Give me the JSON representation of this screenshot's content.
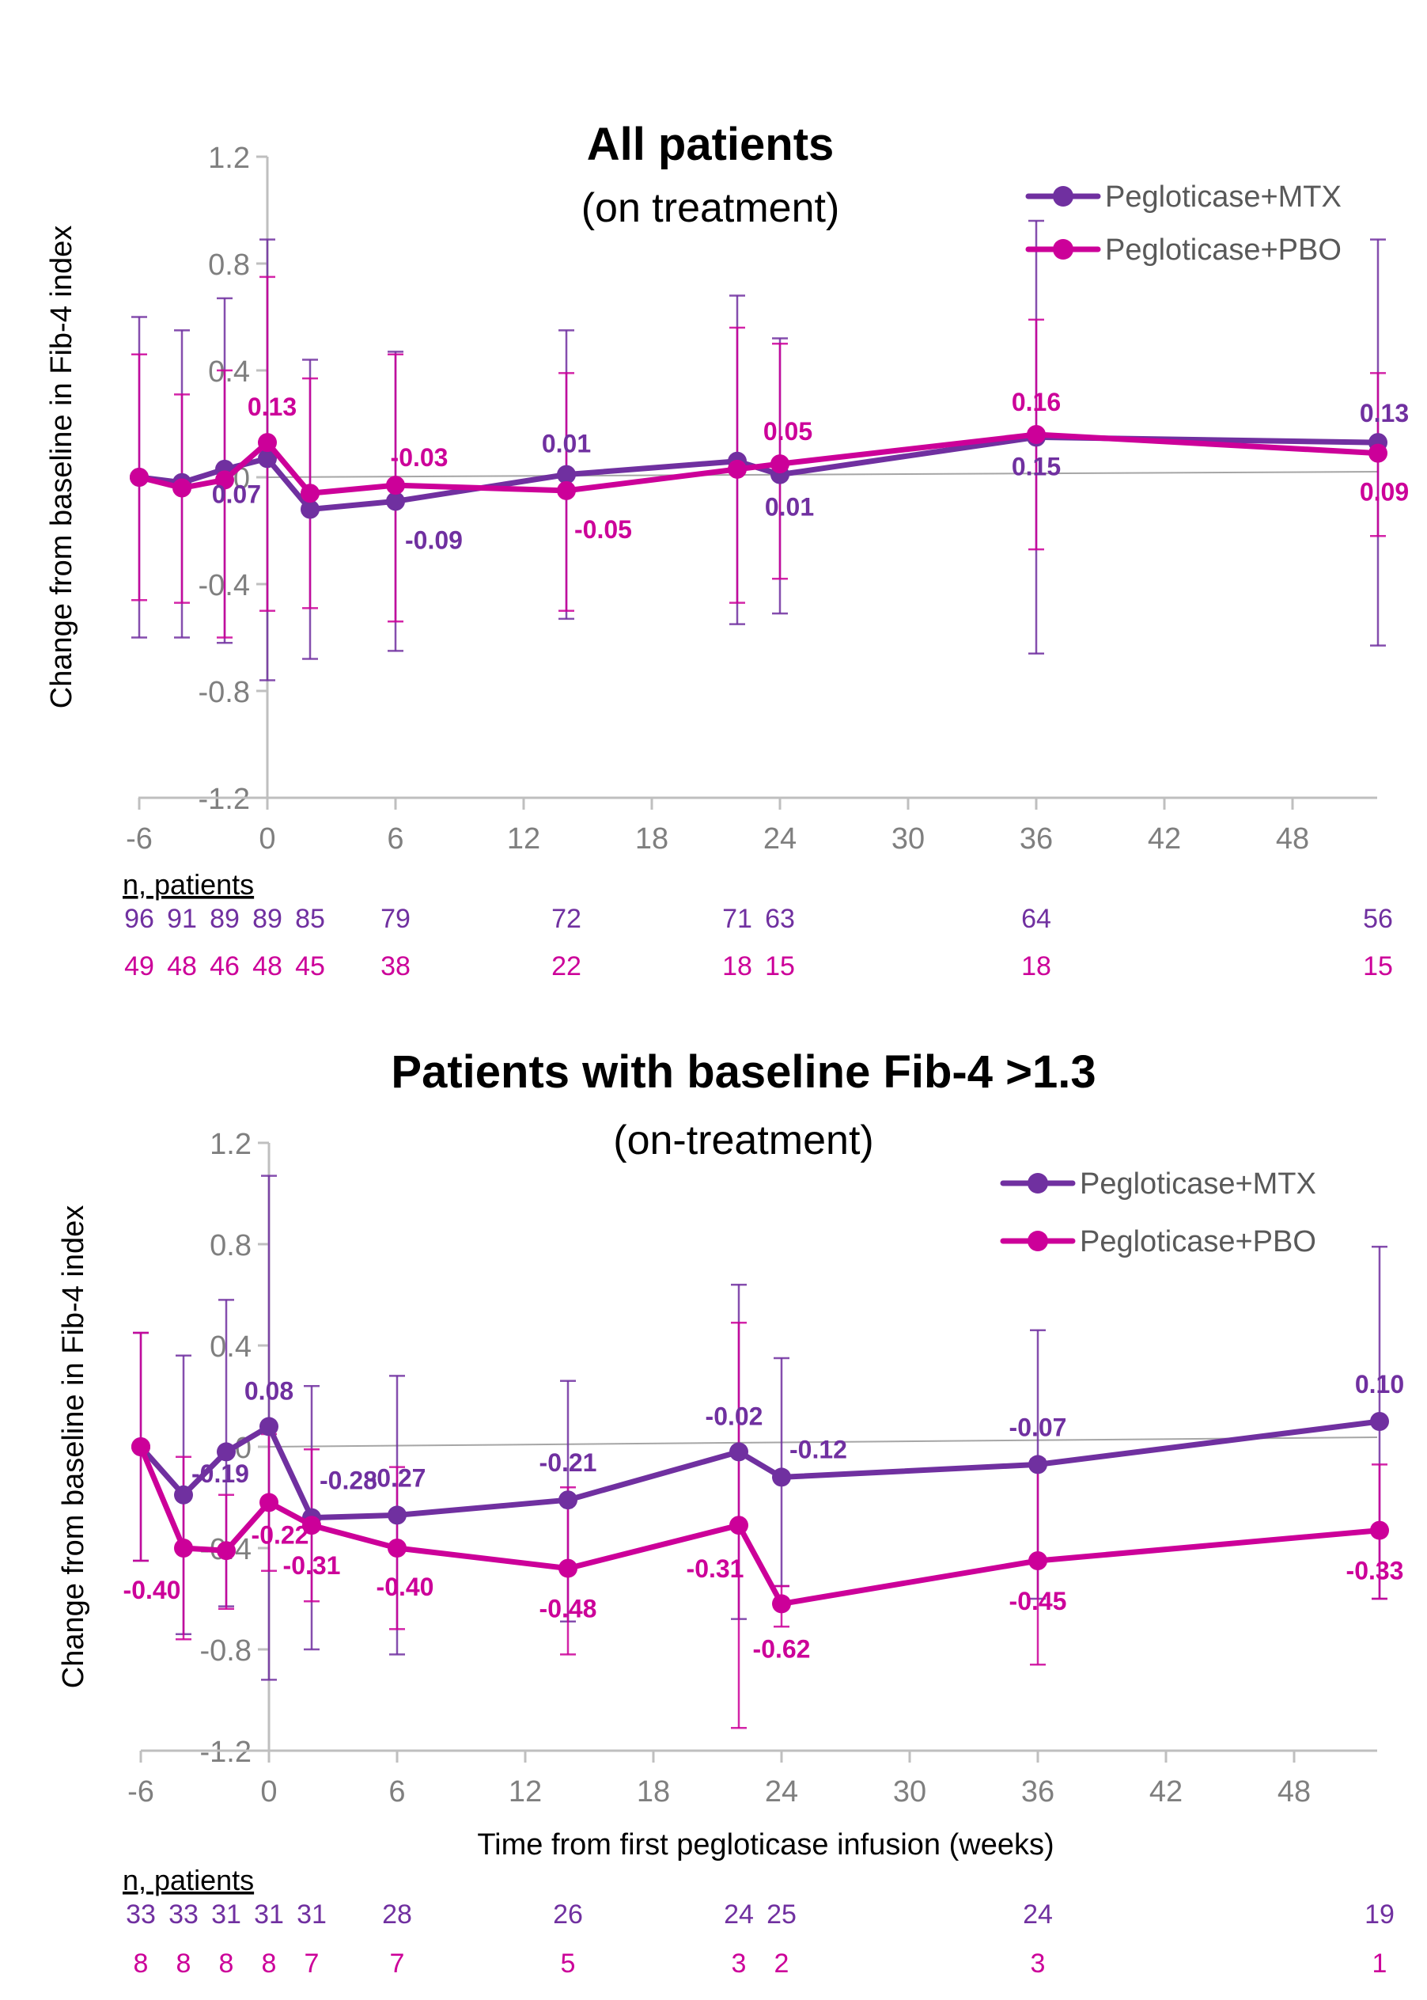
{
  "colors": {
    "mtx": "#7030a0",
    "pbo": "#cc0099",
    "axis": "#bfbfbf",
    "tick_text": "#7f7f7f",
    "zero_line": "#a6a6a6"
  },
  "chart_data": [
    {
      "type": "line",
      "title": "All patients",
      "subtitle": "(on treatment)",
      "xlabel": "",
      "ylabel": "Change from baseline in Fib-4 index",
      "xlim": [
        -6,
        52
      ],
      "ylim": [
        -1.2,
        1.2
      ],
      "xticks": [
        -6,
        0,
        6,
        12,
        18,
        24,
        30,
        36,
        42,
        48
      ],
      "xtick_labels": [
        "-6",
        "0",
        "6",
        "12",
        "18",
        "24",
        "30",
        "36",
        "42",
        "48"
      ],
      "yticks": [
        1.2,
        0.8,
        0.4,
        0,
        -0.4,
        -0.8,
        -1.2
      ],
      "ytick_labels": [
        "1.2",
        "0.8",
        "0.4",
        "0",
        "-0.4",
        "-0.8",
        "-1.2"
      ],
      "grid": false,
      "legend_position": "top-right",
      "x": [
        -6,
        -4,
        -2,
        0,
        2,
        6,
        14,
        22,
        24,
        36,
        52
      ],
      "series": [
        {
          "name": "Pegloticase+MTX",
          "color": "#7030a0",
          "values": [
            0,
            -0.02,
            0.03,
            0.07,
            -0.12,
            -0.09,
            0.01,
            0.06,
            0.01,
            0.15,
            0.13
          ],
          "error_upper": [
            0.6,
            0.55,
            0.67,
            0.89,
            0.44,
            0.47,
            0.55,
            0.68,
            0.52,
            0.96,
            0.89
          ],
          "error_lower": [
            -0.6,
            -0.6,
            -0.62,
            -0.76,
            -0.68,
            -0.65,
            -0.53,
            -0.55,
            -0.51,
            -0.66,
            -0.63
          ],
          "labels": [
            "",
            "",
            "",
            "0.07",
            "",
            "-0.09",
            "0.01",
            "",
            "0.01",
            "0.15",
            "0.13"
          ],
          "n_patients": [
            "96",
            "91",
            "89",
            "89",
            "85",
            "79",
            "72",
            "71",
            "63",
            "64",
            "56"
          ]
        },
        {
          "name": "Pegloticase+PBO",
          "color": "#cc0099",
          "values": [
            0,
            -0.04,
            -0.01,
            0.13,
            -0.06,
            -0.03,
            -0.05,
            0.03,
            0.05,
            0.16,
            0.09
          ],
          "error_upper": [
            0.46,
            0.31,
            0.4,
            0.75,
            0.37,
            0.46,
            0.39,
            0.56,
            0.5,
            0.59,
            0.39
          ],
          "error_lower": [
            -0.46,
            -0.47,
            -0.6,
            -0.5,
            -0.49,
            -0.54,
            -0.5,
            -0.47,
            -0.38,
            -0.27,
            -0.22
          ],
          "labels": [
            "",
            "",
            "",
            "0.13",
            "",
            "-0.03",
            "-0.05",
            "",
            "0.05",
            "0.16",
            "0.09"
          ],
          "n_patients": [
            "49",
            "48",
            "46",
            "48",
            "45",
            "38",
            "22",
            "18",
            "15",
            "18",
            "15"
          ]
        }
      ],
      "n_patients_header": "n, patients"
    },
    {
      "type": "line",
      "title": "Patients with baseline Fib-4 >1.3",
      "subtitle": "(on-treatment)",
      "xlabel": "Time from first pegloticase infusion (weeks)",
      "ylabel": "Change from baseline in Fib-4 index",
      "xlim": [
        -6,
        52
      ],
      "ylim": [
        -1.2,
        1.2
      ],
      "xticks": [
        -6,
        0,
        6,
        12,
        18,
        24,
        30,
        36,
        42,
        48
      ],
      "xtick_labels": [
        "-6",
        "0",
        "6",
        "12",
        "18",
        "24",
        "30",
        "36",
        "42",
        "48"
      ],
      "yticks": [
        1.2,
        0.8,
        0.4,
        0,
        -0.4,
        -0.8,
        -1.2
      ],
      "ytick_labels": [
        "1.2",
        "0.8",
        "0.4",
        "0",
        "-0.4",
        "-0.8",
        "-1.2"
      ],
      "grid": false,
      "legend_position": "top-right",
      "x": [
        -6,
        -4,
        -2,
        0,
        2,
        6,
        14,
        22,
        24,
        36,
        52
      ],
      "series": [
        {
          "name": "Pegloticase+MTX",
          "color": "#7030a0",
          "values": [
            0,
            -0.19,
            -0.02,
            0.08,
            -0.28,
            -0.27,
            -0.21,
            -0.02,
            -0.12,
            -0.07,
            0.1
          ],
          "error_upper": [
            0.45,
            0.36,
            0.58,
            1.07,
            0.24,
            0.28,
            0.26,
            0.64,
            0.35,
            0.46,
            0.79
          ],
          "error_lower": [
            -0.45,
            -0.74,
            -0.63,
            -0.92,
            -0.8,
            -0.82,
            -0.69,
            -0.68,
            -0.55,
            -0.6,
            -0.6
          ],
          "labels": [
            "",
            "-0.19",
            "",
            "0.08",
            "-0.28",
            "-0.27",
            "-0.21",
            "-0.02",
            "-0.12",
            "-0.07",
            "0.10"
          ],
          "n_patients": [
            "33",
            "33",
            "31",
            "31",
            "31",
            "28",
            "26",
            "24",
            "25",
            "24",
            "19"
          ]
        },
        {
          "name": "Pegloticase+PBO",
          "color": "#cc0099",
          "values": [
            0,
            -0.4,
            -0.41,
            -0.22,
            -0.31,
            -0.4,
            -0.48,
            -0.31,
            -0.62,
            -0.45,
            -0.33
          ],
          "error_upper": [
            0.45,
            -0.04,
            -0.19,
            0.05,
            -0.01,
            -0.08,
            -0.16,
            0.49,
            -0.55,
            -0.05,
            -0.07
          ],
          "error_lower": [
            -0.45,
            -0.76,
            -0.64,
            -0.49,
            -0.61,
            -0.72,
            -0.82,
            -1.11,
            -0.71,
            -0.86,
            -0.6
          ],
          "labels": [
            "",
            "-0.40",
            "",
            "-0.22",
            "-0.31",
            "-0.40",
            "-0.48",
            "-0.31",
            "-0.62",
            "-0.45",
            "-0.33"
          ],
          "n_patients": [
            "8",
            "8",
            "8",
            "8",
            "7",
            "7",
            "5",
            "3",
            "2",
            "3",
            "1"
          ]
        }
      ],
      "n_patients_header": "n, patients"
    }
  ]
}
